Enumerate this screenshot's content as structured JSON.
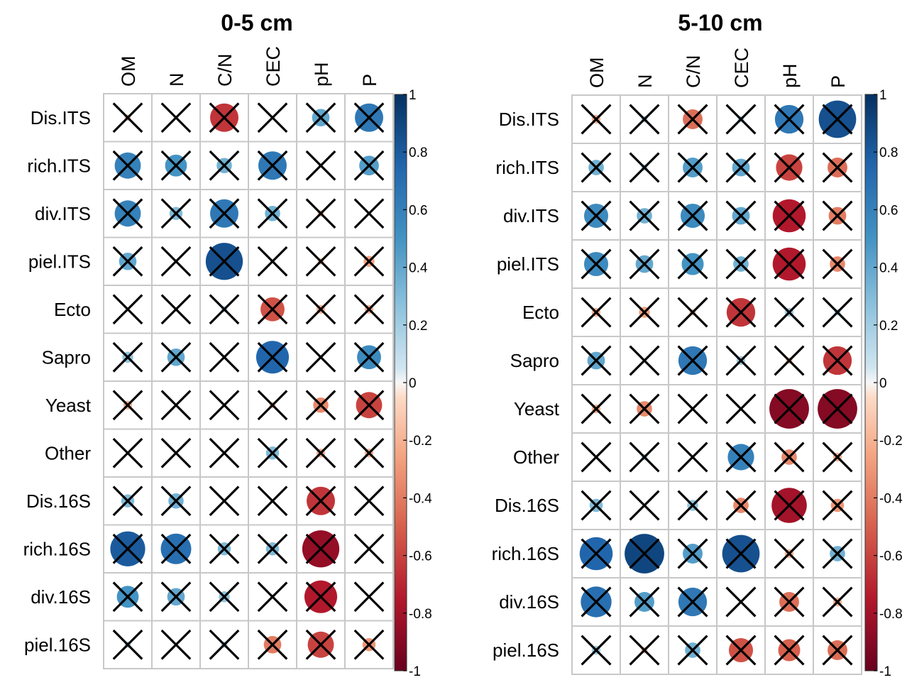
{
  "chart_data": [
    {
      "type": "heatmap",
      "title": "0-5 cm",
      "columns": [
        "OM",
        "N",
        "C/N",
        "CEC",
        "pH",
        "P"
      ],
      "rows": [
        "Dis.ITS",
        "rich.ITS",
        "div.ITS",
        "piel.ITS",
        "Ecto",
        "Sapro",
        "Yeast",
        "Other",
        "Dis.16S",
        "rich.16S",
        "div.16S",
        "piel.16S"
      ],
      "values": [
        [
          -0.15,
          0.0,
          -0.65,
          0.0,
          0.4,
          0.65
        ],
        [
          0.6,
          0.5,
          0.35,
          0.65,
          -0.1,
          0.45
        ],
        [
          0.6,
          0.3,
          0.65,
          0.35,
          -0.15,
          0.0
        ],
        [
          0.4,
          0.0,
          0.85,
          0.0,
          -0.15,
          -0.25
        ],
        [
          0.0,
          -0.1,
          0.15,
          -0.55,
          -0.2,
          -0.2
        ],
        [
          0.25,
          0.4,
          -0.1,
          0.75,
          0.1,
          0.55
        ],
        [
          -0.2,
          0.0,
          -0.1,
          -0.15,
          -0.35,
          -0.6
        ],
        [
          0.0,
          0.0,
          0.0,
          0.3,
          -0.2,
          -0.2
        ],
        [
          0.3,
          0.35,
          0.0,
          0.0,
          -0.65,
          0.0
        ],
        [
          0.8,
          0.7,
          0.3,
          0.3,
          -0.85,
          0.1
        ],
        [
          0.5,
          0.4,
          0.25,
          -0.1,
          -0.75,
          0.0
        ],
        [
          0.15,
          0.0,
          0.15,
          -0.4,
          -0.6,
          -0.3
        ]
      ],
      "crossed": "all",
      "legend_ticks": [
        "1",
        "0.8",
        "0.6",
        "0.4",
        "0.2",
        "0",
        "-0.2",
        "-0.4",
        "-0.6",
        "-0.8",
        "-1"
      ],
      "value_range": [
        -1,
        1
      ],
      "legend_placement": "right"
    },
    {
      "type": "heatmap",
      "title": "5-10 cm",
      "columns": [
        "OM",
        "N",
        "C/N",
        "CEC",
        "pH",
        "P"
      ],
      "rows": [
        "Dis.ITS",
        "rich.ITS",
        "div.ITS",
        "piel.ITS",
        "Ecto",
        "Sapro",
        "Yeast",
        "Other",
        "Dis.16S",
        "rich.16S",
        "div.16S",
        "piel.16S"
      ],
      "values": [
        [
          -0.2,
          0.15,
          -0.45,
          0.15,
          0.65,
          0.85
        ],
        [
          0.35,
          0.15,
          0.45,
          0.4,
          -0.6,
          -0.45
        ],
        [
          0.55,
          0.35,
          0.55,
          0.4,
          -0.75,
          -0.4
        ],
        [
          0.55,
          0.4,
          0.5,
          0.35,
          -0.75,
          -0.35
        ],
        [
          -0.2,
          -0.25,
          -0.15,
          -0.65,
          0.2,
          0.15
        ],
        [
          0.4,
          0.0,
          0.65,
          0.2,
          -0.15,
          -0.65
        ],
        [
          -0.2,
          -0.35,
          0.0,
          0.0,
          -0.9,
          -0.9
        ],
        [
          0.0,
          0.15,
          0.0,
          0.6,
          -0.35,
          -0.2
        ],
        [
          0.3,
          0.0,
          0.25,
          -0.35,
          -0.8,
          -0.3
        ],
        [
          0.75,
          0.9,
          0.45,
          0.85,
          -0.2,
          0.35
        ],
        [
          0.7,
          0.45,
          0.65,
          0.0,
          -0.45,
          -0.2
        ],
        [
          0.2,
          -0.15,
          0.35,
          -0.55,
          -0.5,
          -0.45
        ]
      ],
      "crossed": "all",
      "legend_ticks": [
        "1",
        "0.8",
        "0.6",
        "0.4",
        "0.2",
        "0",
        "-0.2",
        "-0.4",
        "-0.6",
        "-0.8",
        "-1"
      ],
      "value_range": [
        -1,
        1
      ],
      "legend_placement": "right"
    }
  ],
  "colors": {
    "positive_max": "#053061",
    "positive_mid": "#4393c3",
    "neutral": "#f7f7f7",
    "negative_mid": "#d6604d",
    "negative_max": "#67001f"
  }
}
